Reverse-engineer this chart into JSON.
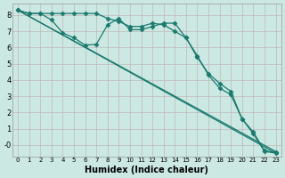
{
  "xlabel": "Humidex (Indice chaleur)",
  "background_color": "#cbe8e3",
  "grid_color": "#c0b8b8",
  "line_color": "#1a7a6e",
  "marker": "D",
  "marker_size": 2.5,
  "line_width": 0.9,
  "xlim": [
    -0.5,
    23.5
  ],
  "ylim": [
    -0.7,
    8.7
  ],
  "xticks": [
    0,
    1,
    2,
    3,
    4,
    5,
    6,
    7,
    8,
    9,
    10,
    11,
    12,
    13,
    14,
    15,
    16,
    17,
    18,
    19,
    20,
    21,
    22,
    23
  ],
  "yticks": [
    0,
    1,
    2,
    3,
    4,
    5,
    6,
    7,
    8
  ],
  "series": [
    {
      "x": [
        0,
        1,
        2,
        3,
        4,
        5,
        6,
        7,
        8,
        9,
        10,
        11,
        12,
        13,
        14,
        15,
        16,
        17,
        18,
        19,
        20,
        21,
        22,
        23
      ],
      "y": [
        8.3,
        8.1,
        8.1,
        7.7,
        6.9,
        6.6,
        6.15,
        6.2,
        7.4,
        7.8,
        7.1,
        7.1,
        7.3,
        7.5,
        7.5,
        6.6,
        5.4,
        4.4,
        3.8,
        3.3,
        1.6,
        0.7,
        -0.4,
        -0.5
      ],
      "has_markers": true
    },
    {
      "x": [
        0,
        23
      ],
      "y": [
        8.3,
        -0.5
      ],
      "has_markers": false
    },
    {
      "x": [
        0,
        23
      ],
      "y": [
        8.3,
        -0.4
      ],
      "has_markers": false
    },
    {
      "x": [
        0,
        1,
        2,
        3,
        4,
        5,
        6,
        7,
        8,
        9,
        10,
        11,
        12,
        13,
        14,
        15,
        16,
        17,
        18,
        19,
        20,
        21,
        22,
        23
      ],
      "y": [
        8.3,
        8.1,
        8.1,
        8.1,
        8.1,
        8.1,
        8.1,
        8.1,
        7.8,
        7.6,
        7.3,
        7.3,
        7.5,
        7.4,
        7.0,
        6.6,
        5.5,
        4.3,
        3.5,
        3.1,
        1.6,
        0.8,
        -0.35,
        -0.45
      ],
      "has_markers": true
    }
  ]
}
